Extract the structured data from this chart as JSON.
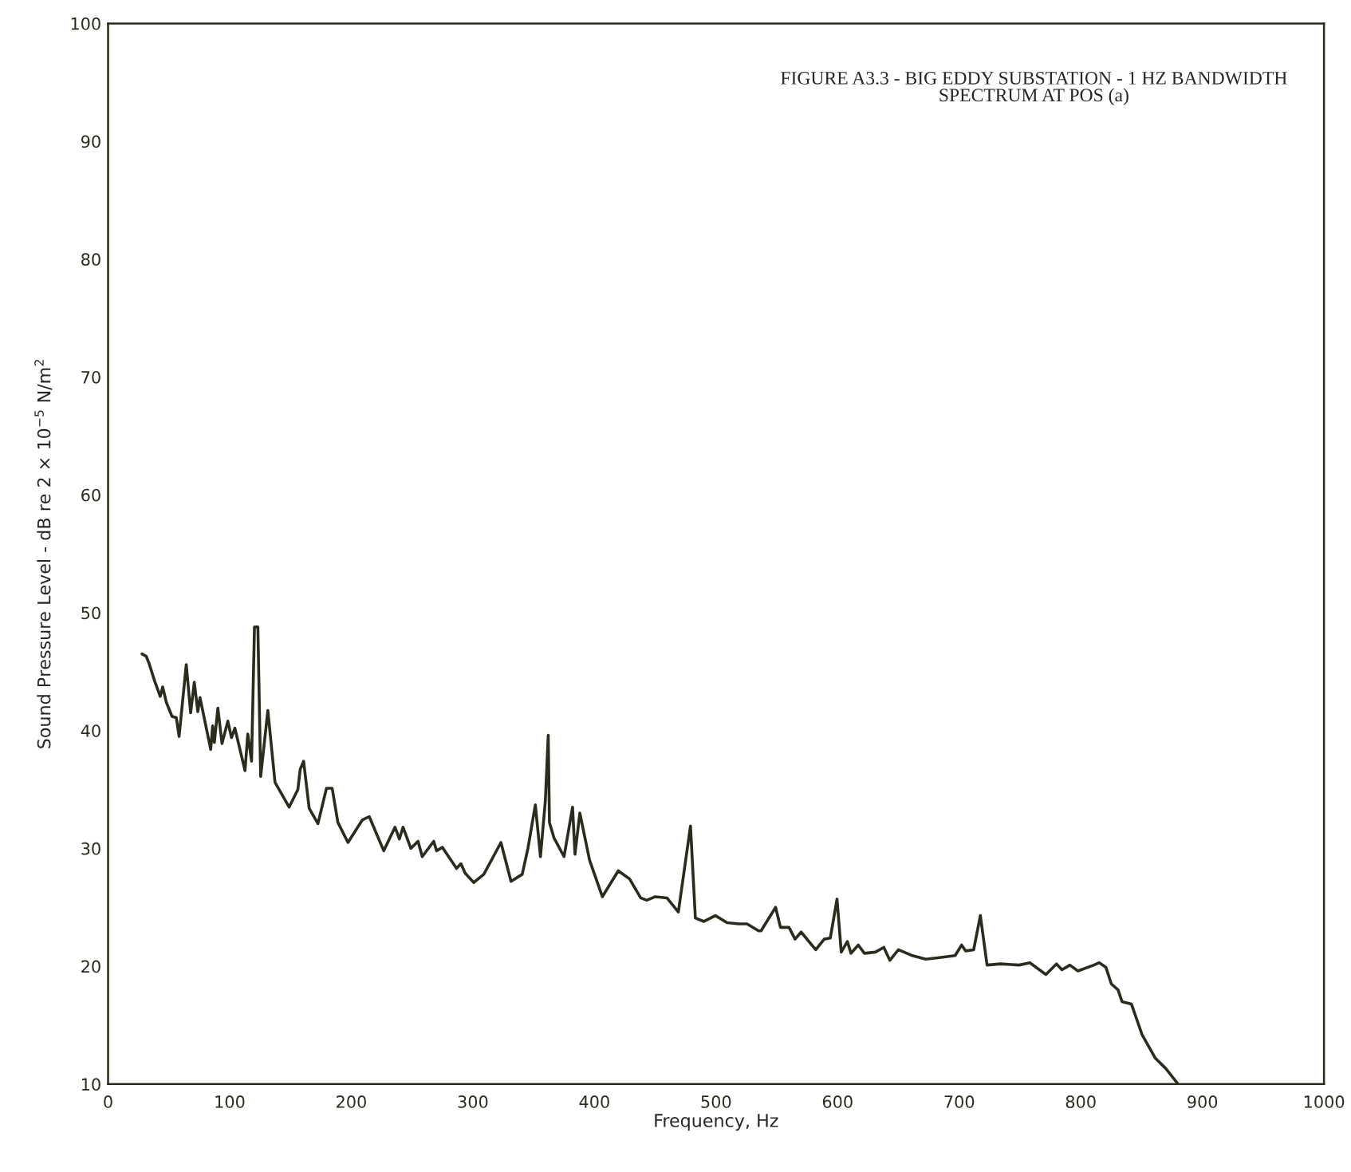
{
  "chart_data": {
    "type": "line",
    "title": "FIGURE A3.3 - BIG EDDY SUBSTATION - 1 HZ BANDWIDTH\nSPECTRUM AT POS (a)",
    "xlabel": "Frequency, Hz",
    "ylabel": "Sound Pressure Level - dB re 2 × 10$^{−5}$ N/m$^{2}$",
    "xlim": [
      0,
      1000
    ],
    "ylim": [
      10,
      100
    ],
    "xticks": [
      0,
      100,
      200,
      300,
      400,
      500,
      600,
      700,
      800,
      900,
      1000
    ],
    "yticks": [
      10,
      20,
      30,
      40,
      50,
      60,
      70,
      80,
      90,
      100
    ],
    "grid": false,
    "legend": false,
    "marker": "none",
    "line_style": "solid",
    "series": [
      {
        "color": "#2b2b1e",
        "x": [
          27.9,
          31.4,
          33.7,
          38.3,
          42.9,
          44.9,
          47.9,
          52.6,
          56.1,
          58.4,
          64.3,
          67.9,
          70.9,
          73.8,
          75.6,
          84.4,
          86,
          87.4,
          90.3,
          93.7,
          98.5,
          101.5,
          104.3,
          112.6,
          114.9,
          118,
          120.4,
          123.2,
          125.5,
          131.4,
          137.3,
          148.9,
          156.1,
          158,
          160.8,
          165.4,
          172.6,
          179.6,
          184.3,
          189,
          197.3,
          209,
          214.8,
          226.7,
          236,
          239.6,
          242.6,
          249,
          254.9,
          258.4,
          267.8,
          270.2,
          274.9,
          286.6,
          290.2,
          293.7,
          300.8,
          309,
          323.1,
          331.4,
          340.6,
          345.3,
          351.4,
          355.6,
          359.6,
          362,
          363,
          366.7,
          375,
          382,
          384,
          388,
          396,
          406.5,
          419.6,
          429,
          438,
          443,
          450,
          459.6,
          469,
          479,
          483,
          490,
          499.5,
          509,
          518.6,
          525.5,
          535,
          537,
          549,
          553,
          560,
          565,
          570,
          582,
          589,
          594,
          599.5,
          603,
          608,
          611,
          617,
          622,
          631,
          638,
          643,
          650,
          661.5,
          672.5,
          681.2,
          696.6,
          702,
          705.3,
          711.9,
          717.4,
          722.9,
          733.9,
          749.3,
          758.1,
          771.3,
          780,
          784.5,
          791,
          797.6,
          810.8,
          815.2,
          820.7,
          825.1,
          830.6,
          833.9,
          841.6,
          850.4,
          861.3,
          870.1,
          880
        ],
        "values": [
          46.5,
          46.3,
          45.7,
          44.2,
          42.9,
          43.7,
          42.4,
          41.2,
          41.1,
          39.5,
          45.6,
          41.5,
          44.1,
          41.6,
          42.8,
          38.4,
          40.4,
          39.0,
          41.9,
          38.9,
          40.8,
          39.4,
          40.2,
          36.6,
          39.7,
          37.4,
          48.8,
          48.8,
          36.1,
          41.7,
          35.6,
          33.5,
          35.0,
          36.7,
          37.4,
          33.4,
          32.1,
          35.1,
          35.1,
          32.2,
          30.5,
          32.4,
          32.7,
          29.8,
          31.8,
          30.8,
          31.8,
          30.0,
          30.6,
          29.3,
          30.6,
          29.8,
          30.1,
          28.3,
          28.7,
          27.9,
          27.1,
          27.8,
          30.5,
          27.2,
          27.8,
          30.0,
          33.7,
          29.3,
          34.0,
          39.6,
          32.2,
          30.9,
          29.3,
          33.5,
          29.5,
          33.0,
          29.0,
          25.9,
          28.1,
          27.4,
          25.8,
          25.6,
          25.9,
          25.8,
          24.6,
          31.9,
          24.1,
          23.8,
          24.3,
          23.7,
          23.6,
          23.6,
          23.0,
          23.0,
          25.0,
          23.3,
          23.3,
          22.3,
          22.9,
          21.4,
          22.3,
          22.4,
          25.7,
          21.2,
          22.1,
          21.1,
          21.8,
          21.1,
          21.2,
          21.6,
          20.5,
          21.4,
          20.9,
          20.6,
          20.7,
          20.9,
          21.8,
          21.3,
          21.4,
          24.3,
          20.1,
          20.2,
          20.1,
          20.3,
          19.3,
          20.2,
          19.7,
          20.1,
          19.6,
          20.1,
          20.3,
          19.9,
          18.5,
          18.0,
          17.0,
          16.8,
          14.2,
          12.2,
          11.3,
          10.0
        ]
      }
    ]
  }
}
